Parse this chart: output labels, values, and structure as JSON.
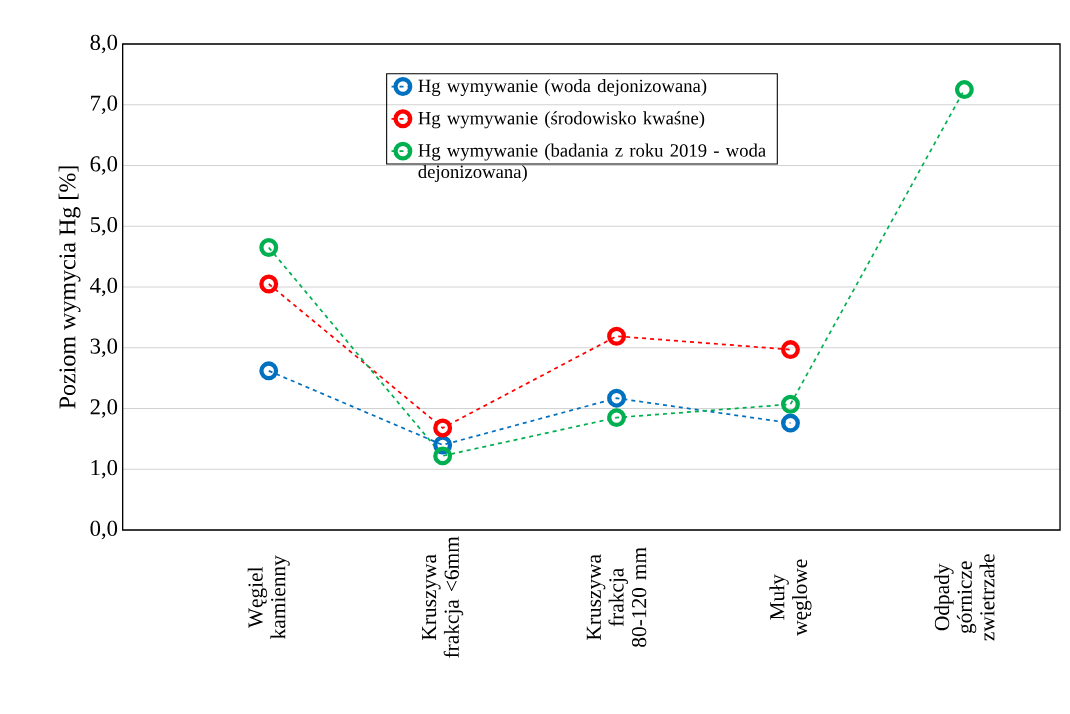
{
  "chart_data": {
    "type": "line",
    "ylabel": "Poziom wymycia Hg [%]",
    "categories": [
      "Węgiel kamienny",
      "Kruszywa frakcja <6mm",
      "Kruszywa frakcja 80-120 mm",
      "Muły węglowe",
      "Odpady górnicze zwietrzałe"
    ],
    "series": [
      {
        "name": "Hg wymywanie (woda dejonizowana)",
        "color": "#0070c0",
        "values": [
          2.62,
          1.4,
          2.17,
          1.76,
          null
        ]
      },
      {
        "name": "Hg wymywanie (środowisko kwaśne)",
        "color": "#ff0000",
        "values": [
          4.05,
          1.68,
          3.19,
          2.97,
          null
        ]
      },
      {
        "name": "Hg wymywanie  (badania z roku 2019 - woda dejonizowana)",
        "color": "#00b050",
        "values": [
          4.65,
          1.22,
          1.85,
          2.07,
          7.25
        ]
      }
    ],
    "ylim": [
      0,
      8
    ],
    "yticks": [
      {
        "value": 0,
        "label": "0,0"
      },
      {
        "value": 1,
        "label": "1,0"
      },
      {
        "value": 2,
        "label": "2,0"
      },
      {
        "value": 3,
        "label": "3,0"
      },
      {
        "value": 4,
        "label": "4,0"
      },
      {
        "value": 5,
        "label": "5,0"
      },
      {
        "value": 6,
        "label": "6,0"
      },
      {
        "value": 7,
        "label": "7,0"
      },
      {
        "value": 8,
        "label": "8,0"
      }
    ],
    "grid": "y",
    "legend": "top",
    "marker": "circle",
    "line_style": "dashed"
  }
}
